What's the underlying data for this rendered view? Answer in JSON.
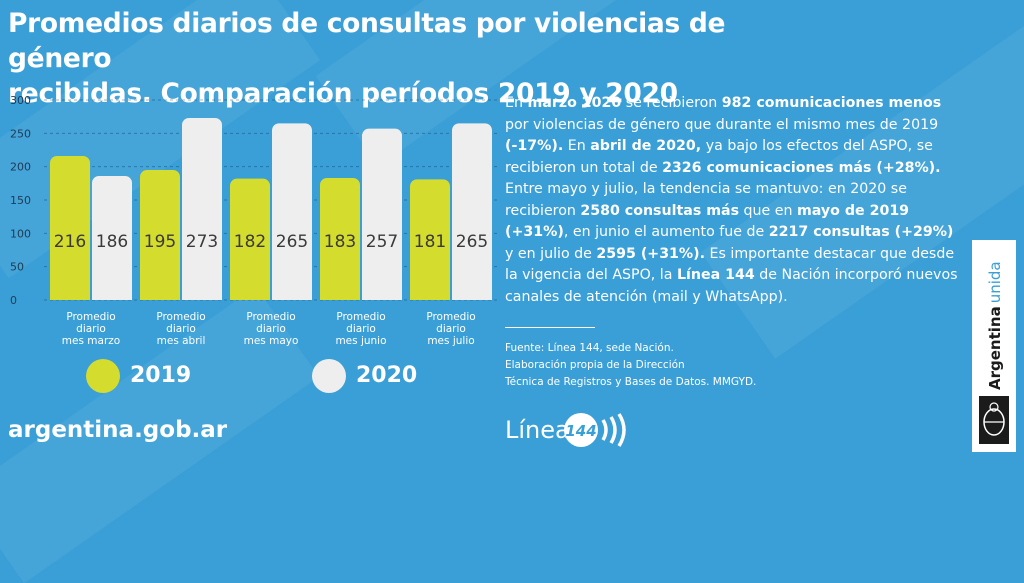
{
  "title_line1": "Promedios diarios de consultas por violencias de género",
  "title_line2": "recibidas. Comparación períodos 2019 y 2020",
  "colors": {
    "background": "#3a9fd6",
    "series_2019": "#d4dc2e",
    "series_2020": "#eeeeee",
    "text": "#ffffff"
  },
  "chart_data": {
    "type": "bar",
    "categories": [
      [
        "Promedio",
        "diario",
        "mes marzo"
      ],
      [
        "Promedio",
        "diario",
        "mes abril"
      ],
      [
        "Promedio",
        "diario",
        "mes mayo"
      ],
      [
        "Promedio",
        "diario",
        "mes junio"
      ],
      [
        "Promedio",
        "diario",
        "mes julio"
      ]
    ],
    "series": [
      {
        "name": "2019",
        "values": [
          216,
          195,
          182,
          183,
          181
        ]
      },
      {
        "name": "2020",
        "values": [
          186,
          273,
          265,
          257,
          265
        ]
      }
    ],
    "yticks": [
      "0",
      "50",
      "100",
      "150",
      "200",
      "250",
      "300"
    ],
    "ylim": [
      0,
      300
    ],
    "grid": true,
    "legend": "bottom"
  },
  "description": [
    {
      "t": "En ",
      "b": false
    },
    {
      "t": "marzo 2020",
      "b": true
    },
    {
      "t": " se recibieron ",
      "b": false
    },
    {
      "t": "982 comunicaciones menos",
      "b": true
    },
    {
      "t": " por violencias de género que durante el mismo mes de 2019 ",
      "b": false
    },
    {
      "t": "(-17%).",
      "b": true
    },
    {
      "t": " En ",
      "b": false
    },
    {
      "t": "abril de 2020,",
      "b": true
    },
    {
      "t": " ya bajo los efectos del ASPO, se recibieron un total de ",
      "b": false
    },
    {
      "t": "2326 comunicaciones más (+28%).",
      "b": true
    },
    {
      "t": " Entre mayo y julio, la tendencia se mantuvo: en 2020 se recibieron ",
      "b": false
    },
    {
      "t": "2580 consultas más",
      "b": true
    },
    {
      "t": " que en ",
      "b": false
    },
    {
      "t": "mayo de 2019 (+31%)",
      "b": true
    },
    {
      "t": ", en junio el aumento fue de ",
      "b": false
    },
    {
      "t": "2217 consultas (+29%)",
      "b": true
    },
    {
      "t": " y en julio de ",
      "b": false
    },
    {
      "t": "2595 (+31%).",
      "b": true
    },
    {
      "t": " Es importante destacar que desde la vigencia del ASPO, la ",
      "b": false
    },
    {
      "t": "Línea 144",
      "b": true
    },
    {
      "t": " de Nación incorporó nuevos canales de atención (mail y WhatsApp).",
      "b": false
    }
  ],
  "source_lines": [
    "Fuente: Línea 144, sede Nación.",
    "Elaboración propia de la Dirección",
    "Técnica de Registros y Bases de Datos. MMGYD."
  ],
  "footer_url": "argentina.gob.ar",
  "linea_logo_word": "Línea",
  "linea_logo_number": "144",
  "brand_main": "Argentina",
  "brand_accent": "unida"
}
